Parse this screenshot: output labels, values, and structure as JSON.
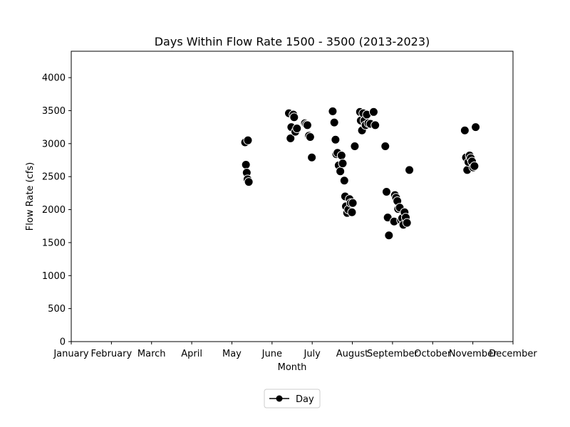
{
  "chart_data": {
    "type": "scatter",
    "title": "Days Within Flow Rate 1500 - 3500 (2013-2023)",
    "xlabel": "Month",
    "ylabel": "Flow Rate (cfs)",
    "x_categories": [
      "January",
      "February",
      "March",
      "April",
      "May",
      "June",
      "July",
      "August",
      "September",
      "October",
      "November",
      "December"
    ],
    "xlim": [
      1,
      12
    ],
    "ylim": [
      0,
      4400
    ],
    "yticks": [
      0,
      500,
      1000,
      1500,
      2000,
      2500,
      3000,
      3500,
      4000
    ],
    "grid": false,
    "legend": {
      "placement": "bottom-center",
      "entries": [
        "Day"
      ]
    },
    "marker_color": "#000000",
    "series": [
      {
        "name": "Day",
        "points": [
          [
            5.33,
            3020
          ],
          [
            5.4,
            3050
          ],
          [
            5.35,
            2680
          ],
          [
            5.37,
            2560
          ],
          [
            5.39,
            2460
          ],
          [
            5.42,
            2420
          ],
          [
            6.42,
            3460
          ],
          [
            6.46,
            3080
          ],
          [
            6.48,
            3250
          ],
          [
            6.53,
            3440
          ],
          [
            6.55,
            3400
          ],
          [
            6.58,
            3180
          ],
          [
            6.62,
            3230
          ],
          [
            6.82,
            3310
          ],
          [
            6.85,
            3290
          ],
          [
            6.88,
            3280
          ],
          [
            6.92,
            3120
          ],
          [
            6.95,
            3100
          ],
          [
            6.99,
            2790
          ],
          [
            7.51,
            3490
          ],
          [
            7.55,
            3320
          ],
          [
            7.58,
            3060
          ],
          [
            7.6,
            2840
          ],
          [
            7.63,
            2860
          ],
          [
            7.66,
            2670
          ],
          [
            7.7,
            2580
          ],
          [
            7.73,
            2820
          ],
          [
            7.76,
            2700
          ],
          [
            7.8,
            2440
          ],
          [
            7.82,
            2200
          ],
          [
            7.84,
            2050
          ],
          [
            7.87,
            1950
          ],
          [
            7.9,
            2000
          ],
          [
            7.93,
            2160
          ],
          [
            7.96,
            2100
          ],
          [
            7.99,
            1960
          ],
          [
            8.01,
            2100
          ],
          [
            8.06,
            2960
          ],
          [
            8.19,
            3480
          ],
          [
            8.21,
            3350
          ],
          [
            8.24,
            3200
          ],
          [
            8.27,
            3460
          ],
          [
            8.3,
            3350
          ],
          [
            8.33,
            3280
          ],
          [
            8.36,
            3440
          ],
          [
            8.4,
            3310
          ],
          [
            8.45,
            3300
          ],
          [
            8.53,
            3480
          ],
          [
            8.57,
            3280
          ],
          [
            8.82,
            2960
          ],
          [
            8.85,
            2270
          ],
          [
            8.88,
            1880
          ],
          [
            8.91,
            1610
          ],
          [
            9.04,
            1820
          ],
          [
            9.06,
            2220
          ],
          [
            9.09,
            2180
          ],
          [
            9.12,
            2130
          ],
          [
            9.14,
            2010
          ],
          [
            9.18,
            2030
          ],
          [
            9.21,
            1840
          ],
          [
            9.24,
            1870
          ],
          [
            9.27,
            1770
          ],
          [
            9.3,
            1960
          ],
          [
            9.33,
            1880
          ],
          [
            9.36,
            1800
          ],
          [
            9.42,
            2600
          ],
          [
            10.8,
            3200
          ],
          [
            10.83,
            2790
          ],
          [
            10.86,
            2600
          ],
          [
            10.89,
            2720
          ],
          [
            10.92,
            2820
          ],
          [
            10.95,
            2780
          ],
          [
            10.98,
            2730
          ],
          [
            11.01,
            2640
          ],
          [
            11.04,
            2660
          ],
          [
            11.07,
            3250
          ]
        ]
      }
    ]
  }
}
